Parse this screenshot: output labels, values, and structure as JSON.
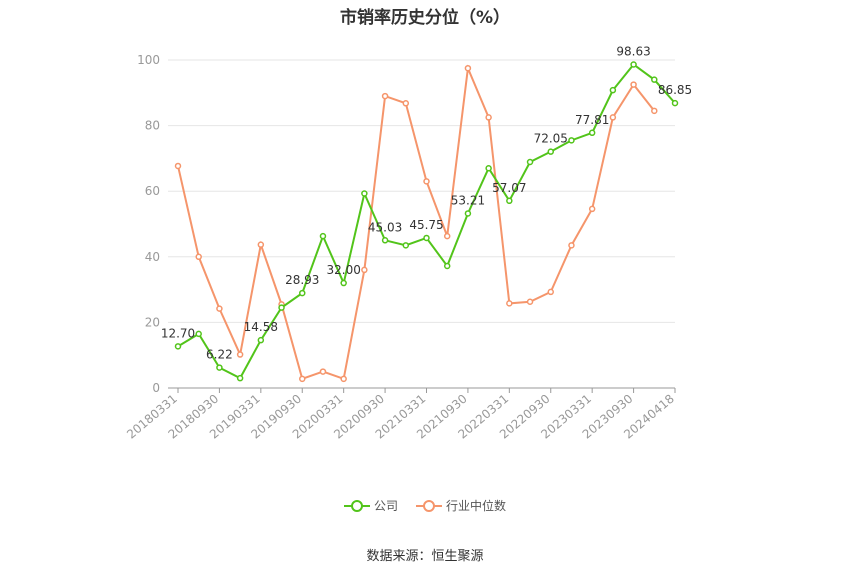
{
  "chart_data": {
    "type": "line",
    "title": "市销率历史分位（%）",
    "x_tick_labels": [
      "20180331",
      "20180930",
      "20190331",
      "20190930",
      "20200331",
      "20200930",
      "20210331",
      "20210930",
      "20220331",
      "20220930",
      "20230331",
      "20230930",
      "20240418"
    ],
    "ylim": [
      0,
      100
    ],
    "y_ticks": [
      0,
      20,
      40,
      60,
      80,
      100
    ],
    "grid": true,
    "legend_position": "bottom",
    "series": [
      {
        "name": "公司",
        "color": "#52c41a",
        "values": [
          12.7,
          16.5,
          6.22,
          3.0,
          14.58,
          24.5,
          28.93,
          46.3,
          32.0,
          59.3,
          45.03,
          43.5,
          45.75,
          37.2,
          53.21,
          67.0,
          57.07,
          68.9,
          72.05,
          75.5,
          77.81,
          90.8,
          98.63,
          94.0,
          86.85
        ],
        "point_labels": [
          "12.70",
          "",
          "6.22",
          "",
          "14.58",
          "",
          "28.93",
          "",
          "32.00",
          "",
          "45.03",
          "",
          "45.75",
          "",
          "53.21",
          "",
          "57.07",
          "",
          "72.05",
          "",
          "77.81",
          "",
          "98.63",
          "",
          "86.85"
        ]
      },
      {
        "name": "行业中位数",
        "color": "#f5956b",
        "values": [
          67.7,
          40.0,
          24.2,
          10.2,
          43.7,
          25.5,
          2.8,
          5.0,
          2.8,
          36.0,
          89.0,
          86.8,
          63.0,
          46.3,
          97.5,
          82.5,
          25.8,
          26.3,
          29.3,
          43.5,
          54.6,
          82.5,
          92.5,
          84.5,
          null
        ]
      }
    ]
  },
  "source": "数据来源：恒生聚源"
}
